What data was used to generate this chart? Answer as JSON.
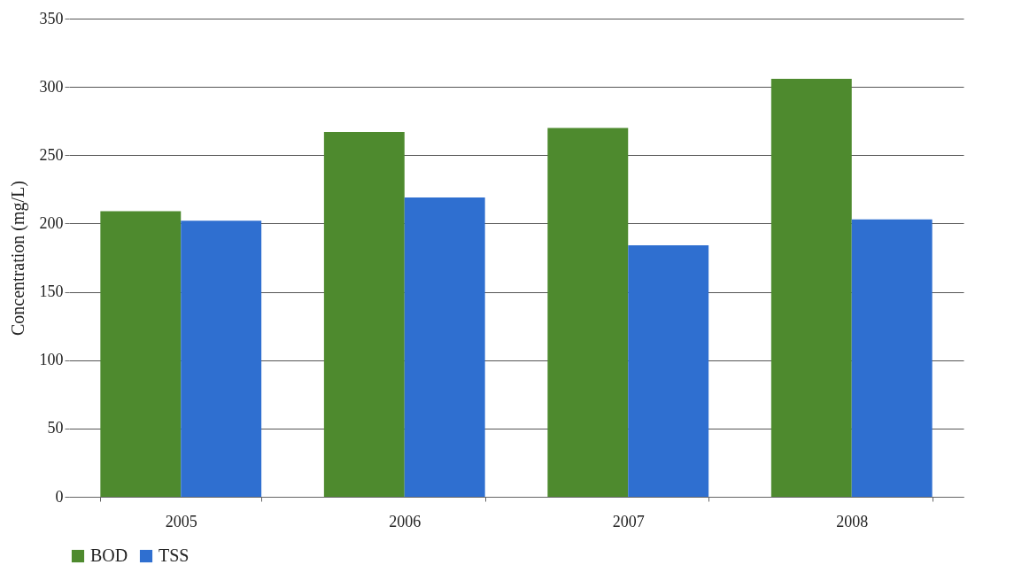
{
  "chart_data": {
    "type": "bar",
    "ylabel": "Concentration (mg/L)",
    "categories": [
      "2005",
      "2006",
      "2007",
      "2008"
    ],
    "series": [
      {
        "name": "BOD",
        "color": "#4e8a2e",
        "values": [
          209,
          267,
          270,
          306
        ]
      },
      {
        "name": "TSS",
        "color": "#2f6fd0",
        "values": [
          202,
          219,
          184,
          203
        ]
      }
    ],
    "ylim": [
      0,
      350
    ],
    "yticks": [
      0,
      50,
      100,
      150,
      200,
      250,
      300,
      350
    ],
    "grid": "y",
    "legend": "bottom"
  }
}
